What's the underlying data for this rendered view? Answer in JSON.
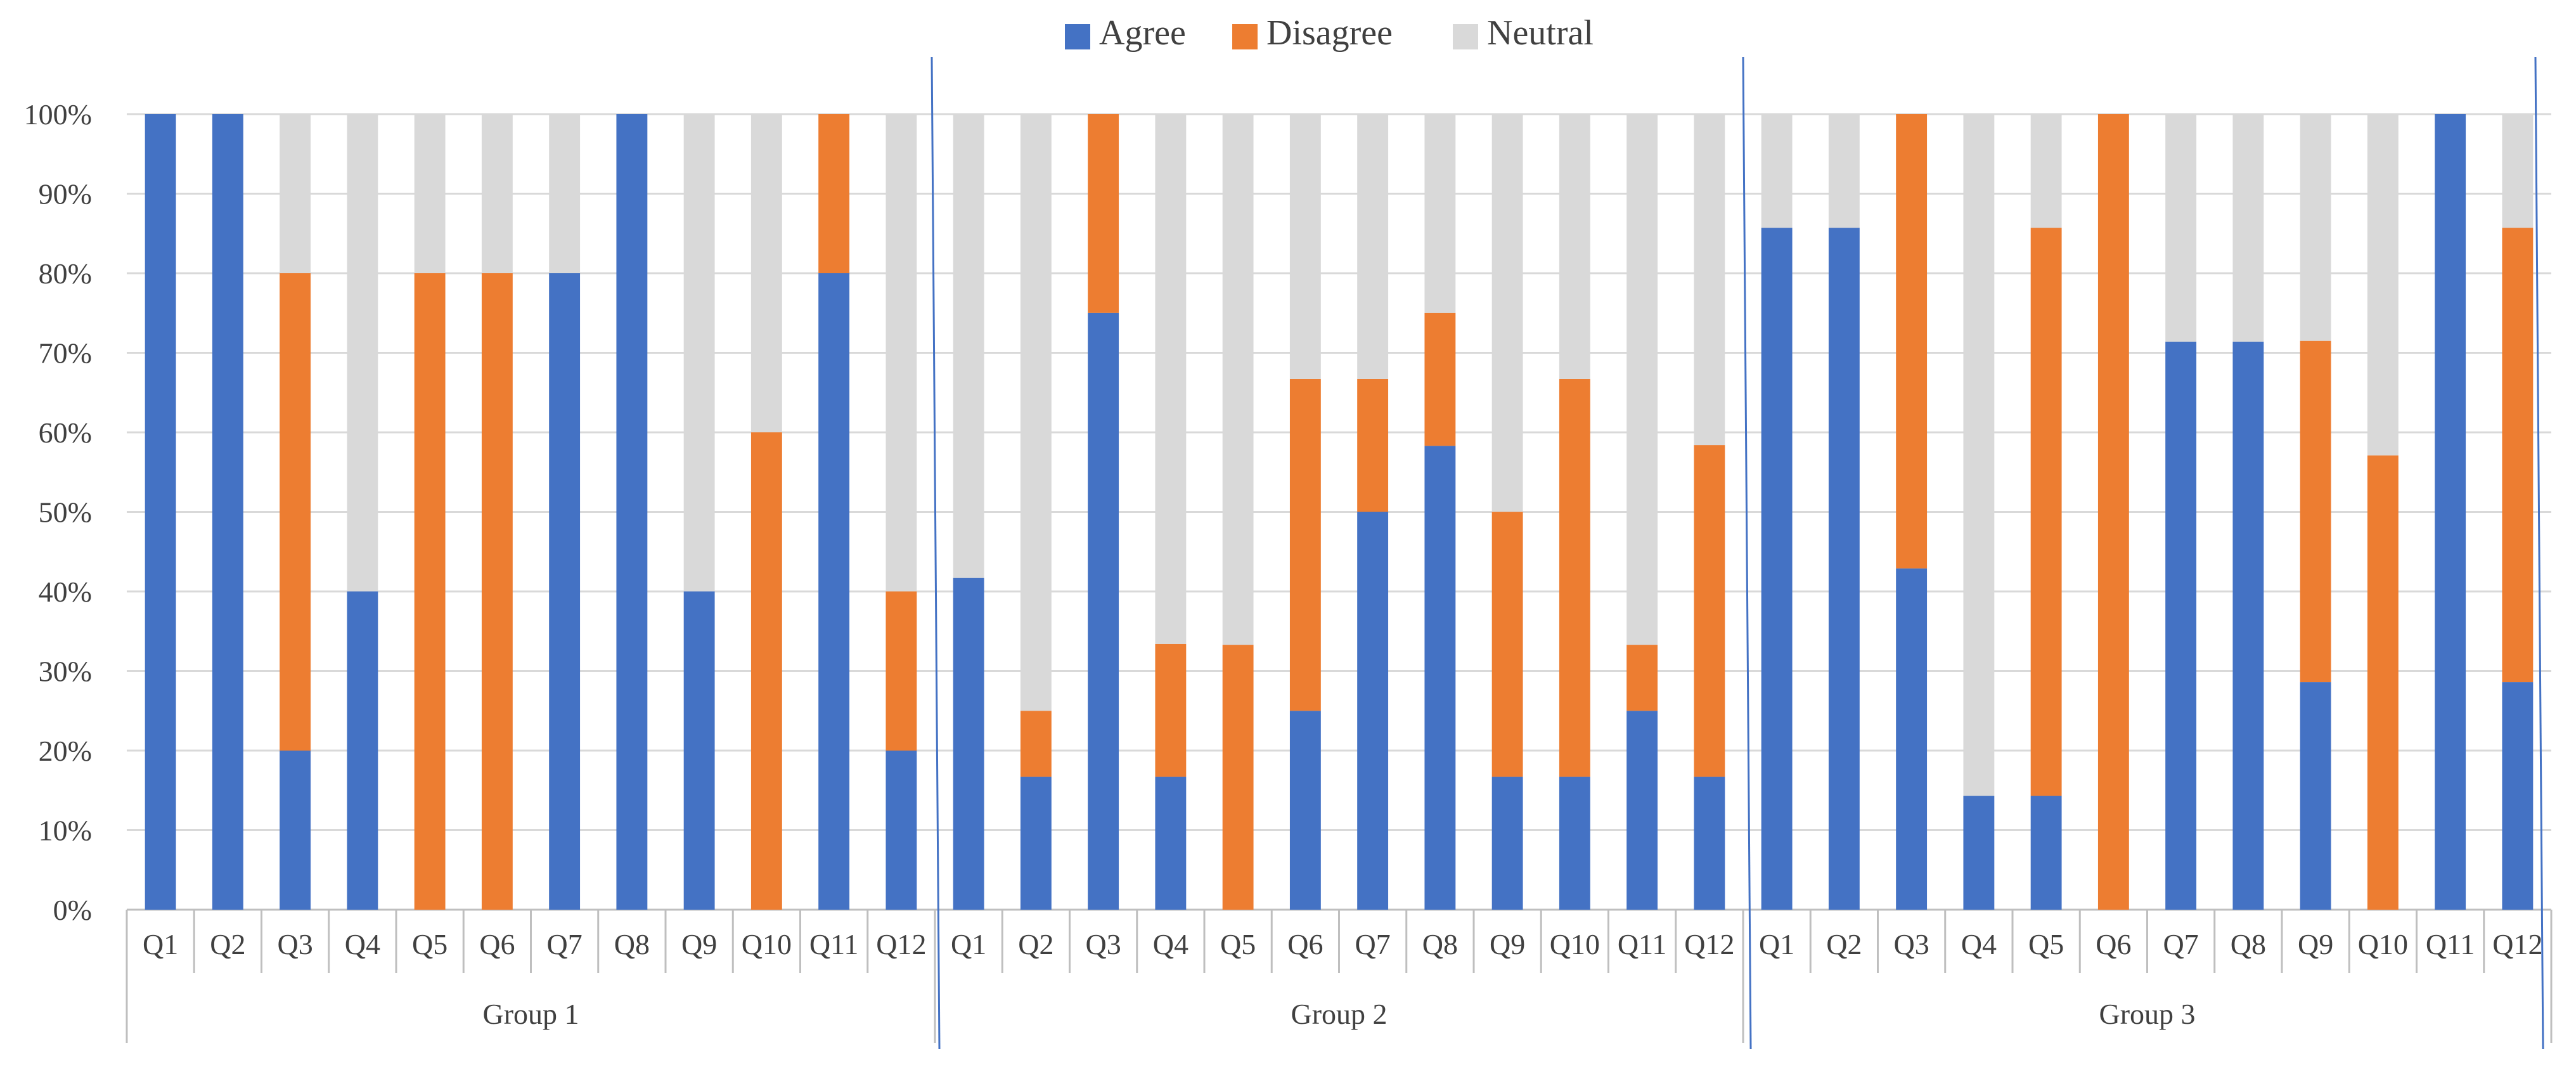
{
  "chart_data": {
    "type": "bar",
    "stacked": true,
    "percent": true,
    "title": "",
    "xlabel": "",
    "ylabel": "",
    "ylim": [
      0,
      100
    ],
    "y_ticks": [
      "0%",
      "10%",
      "20%",
      "30%",
      "40%",
      "50%",
      "60%",
      "70%",
      "80%",
      "90%",
      "100%"
    ],
    "grid": true,
    "legend_position": "top-center",
    "groups": [
      "Group 1",
      "Group 2",
      "Group 3"
    ],
    "categories": [
      "Q1",
      "Q2",
      "Q3",
      "Q4",
      "Q5",
      "Q6",
      "Q7",
      "Q8",
      "Q9",
      "Q10",
      "Q11",
      "Q12"
    ],
    "series": [
      {
        "name": "Agree",
        "color": "#4472C4",
        "values": [
          [
            100,
            100,
            20,
            40,
            0,
            0,
            80,
            100,
            40,
            0,
            80,
            20
          ],
          [
            41.7,
            16.7,
            75,
            16.7,
            0,
            25,
            50,
            58.3,
            16.7,
            16.7,
            25,
            16.7
          ],
          [
            85.7,
            85.7,
            42.9,
            14.3,
            14.3,
            0,
            71.4,
            71.4,
            28.6,
            0,
            100,
            28.6
          ]
        ]
      },
      {
        "name": "Disagree",
        "color": "#ED7D31",
        "values": [
          [
            0,
            0,
            60,
            0,
            80,
            80,
            0,
            0,
            0,
            60,
            20,
            20
          ],
          [
            0,
            8.3,
            25,
            16.7,
            33.3,
            41.7,
            16.7,
            16.7,
            33.3,
            50,
            8.3,
            41.7
          ],
          [
            0,
            0,
            57.1,
            0,
            71.4,
            100,
            0,
            0,
            42.9,
            57.1,
            0,
            57.1
          ]
        ]
      },
      {
        "name": "Neutral",
        "color": "#D9D9D9",
        "values": [
          [
            0,
            0,
            20,
            60,
            20,
            20,
            20,
            0,
            60,
            40,
            0,
            60
          ],
          [
            58.3,
            75,
            0,
            66.7,
            66.7,
            33.3,
            33.3,
            25,
            50,
            33.3,
            66.7,
            41.7
          ],
          [
            14.3,
            14.3,
            0,
            85.7,
            14.3,
            0,
            28.6,
            28.6,
            28.6,
            42.9,
            0,
            14.3
          ]
        ]
      }
    ]
  }
}
